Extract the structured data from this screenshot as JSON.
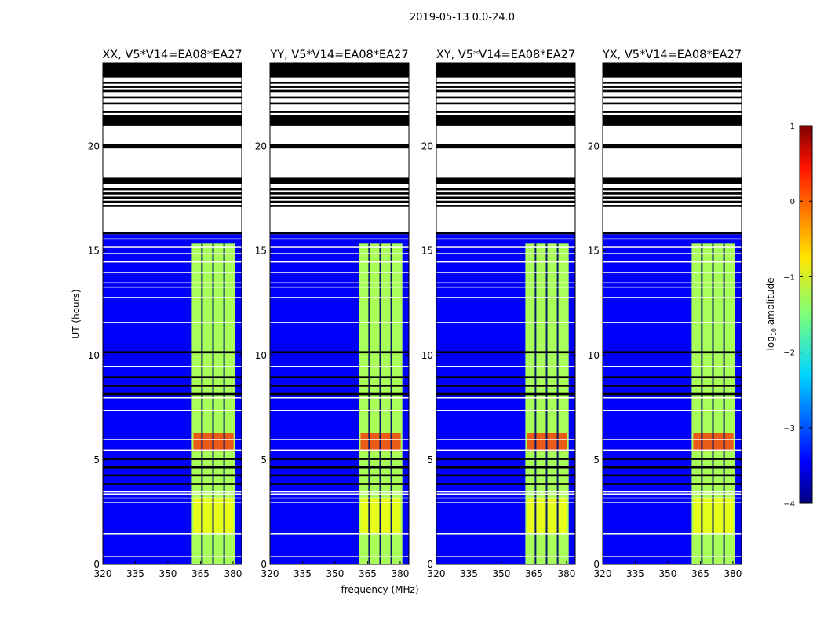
{
  "title": "2019-05-13 0.0-24.0",
  "xlabel": "frequency (MHz)",
  "ylabel": "UT (hours)",
  "colorbar": {
    "label": "log10 amplitude",
    "label_base": "log",
    "label_sub": "10",
    "label_rest": " amplitude",
    "ticks": [
      "1",
      "0",
      "−1",
      "−2",
      "−3",
      "−4"
    ],
    "tick_values": [
      1,
      0,
      -1,
      -2,
      -3,
      -4
    ],
    "range": [
      -4,
      1
    ],
    "colormap": "jet"
  },
  "colors": {
    "flag": "#000000",
    "gap": "#ffffff",
    "axes": "#000000"
  },
  "chart_data": {
    "type": "heatmap",
    "xlim": [
      320,
      384
    ],
    "ylim": [
      0,
      24
    ],
    "x_ticks": [
      "320",
      "335",
      "350",
      "365",
      "380"
    ],
    "x_tick_values": [
      320,
      335,
      350,
      365,
      380
    ],
    "y_ticks": [
      "0",
      "5",
      "10",
      "15",
      "20"
    ],
    "y_tick_values": [
      0,
      5,
      10,
      15,
      20
    ],
    "panels": [
      {
        "title": "XX, V5*V14=EA08*EA27",
        "polarization": "XX"
      },
      {
        "title": "YY, V5*V14=EA08*EA27",
        "polarization": "YY"
      },
      {
        "title": "XY, V5*V14=EA08*EA27",
        "polarization": "XY"
      },
      {
        "title": "YX, V5*V14=EA08*EA27",
        "polarization": "YX"
      }
    ],
    "background_level": -3.4,
    "band": {
      "freq_range": [
        361,
        381
      ],
      "level": -1.3,
      "channel_gaps_mhz": [
        365.7,
        370.8,
        375.9
      ]
    },
    "hot_spots_hours": [
      {
        "t": [
          5.4,
          6.3
        ],
        "level": 0.2
      },
      {
        "t": [
          1.5,
          3.2
        ],
        "level": -0.9
      }
    ],
    "data_end_hour": 15.8,
    "flagged_hours": [
      [
        24.0,
        23.3
      ],
      [
        23.1,
        23.0
      ],
      [
        22.9,
        22.8
      ],
      [
        22.7,
        22.6
      ],
      [
        22.4,
        22.3
      ],
      [
        22.1,
        22.0
      ],
      [
        21.7,
        21.6
      ],
      [
        21.5,
        21.0
      ],
      [
        20.1,
        19.9
      ],
      [
        18.5,
        18.2
      ],
      [
        18.0,
        17.9
      ],
      [
        17.8,
        17.7
      ],
      [
        17.6,
        17.5
      ],
      [
        17.4,
        17.3
      ],
      [
        17.2,
        17.1
      ],
      [
        15.9,
        15.8
      ],
      [
        10.2,
        10.1
      ],
      [
        9.0,
        8.9
      ],
      [
        8.6,
        8.5
      ],
      [
        8.2,
        8.1
      ],
      [
        5.1,
        5.0
      ],
      [
        4.7,
        4.6
      ],
      [
        4.3,
        4.2
      ],
      [
        3.9,
        3.8
      ]
    ],
    "gap_hours": [
      [
        15.6,
        15.55
      ],
      [
        15.2,
        15.15
      ],
      [
        14.9,
        14.85
      ],
      [
        14.5,
        14.45
      ],
      [
        14.0,
        13.95
      ],
      [
        13.5,
        13.45
      ],
      [
        13.3,
        13.25
      ],
      [
        12.8,
        12.75
      ],
      [
        11.6,
        11.55
      ],
      [
        9.5,
        9.45
      ],
      [
        8.0,
        7.95
      ],
      [
        7.4,
        7.35
      ],
      [
        6.0,
        5.95
      ],
      [
        5.5,
        5.45
      ],
      [
        3.5,
        3.45
      ],
      [
        3.4,
        3.35
      ],
      [
        3.2,
        3.15
      ],
      [
        3.0,
        2.95
      ],
      [
        1.5,
        1.45
      ],
      [
        0.4,
        0.35
      ]
    ]
  }
}
